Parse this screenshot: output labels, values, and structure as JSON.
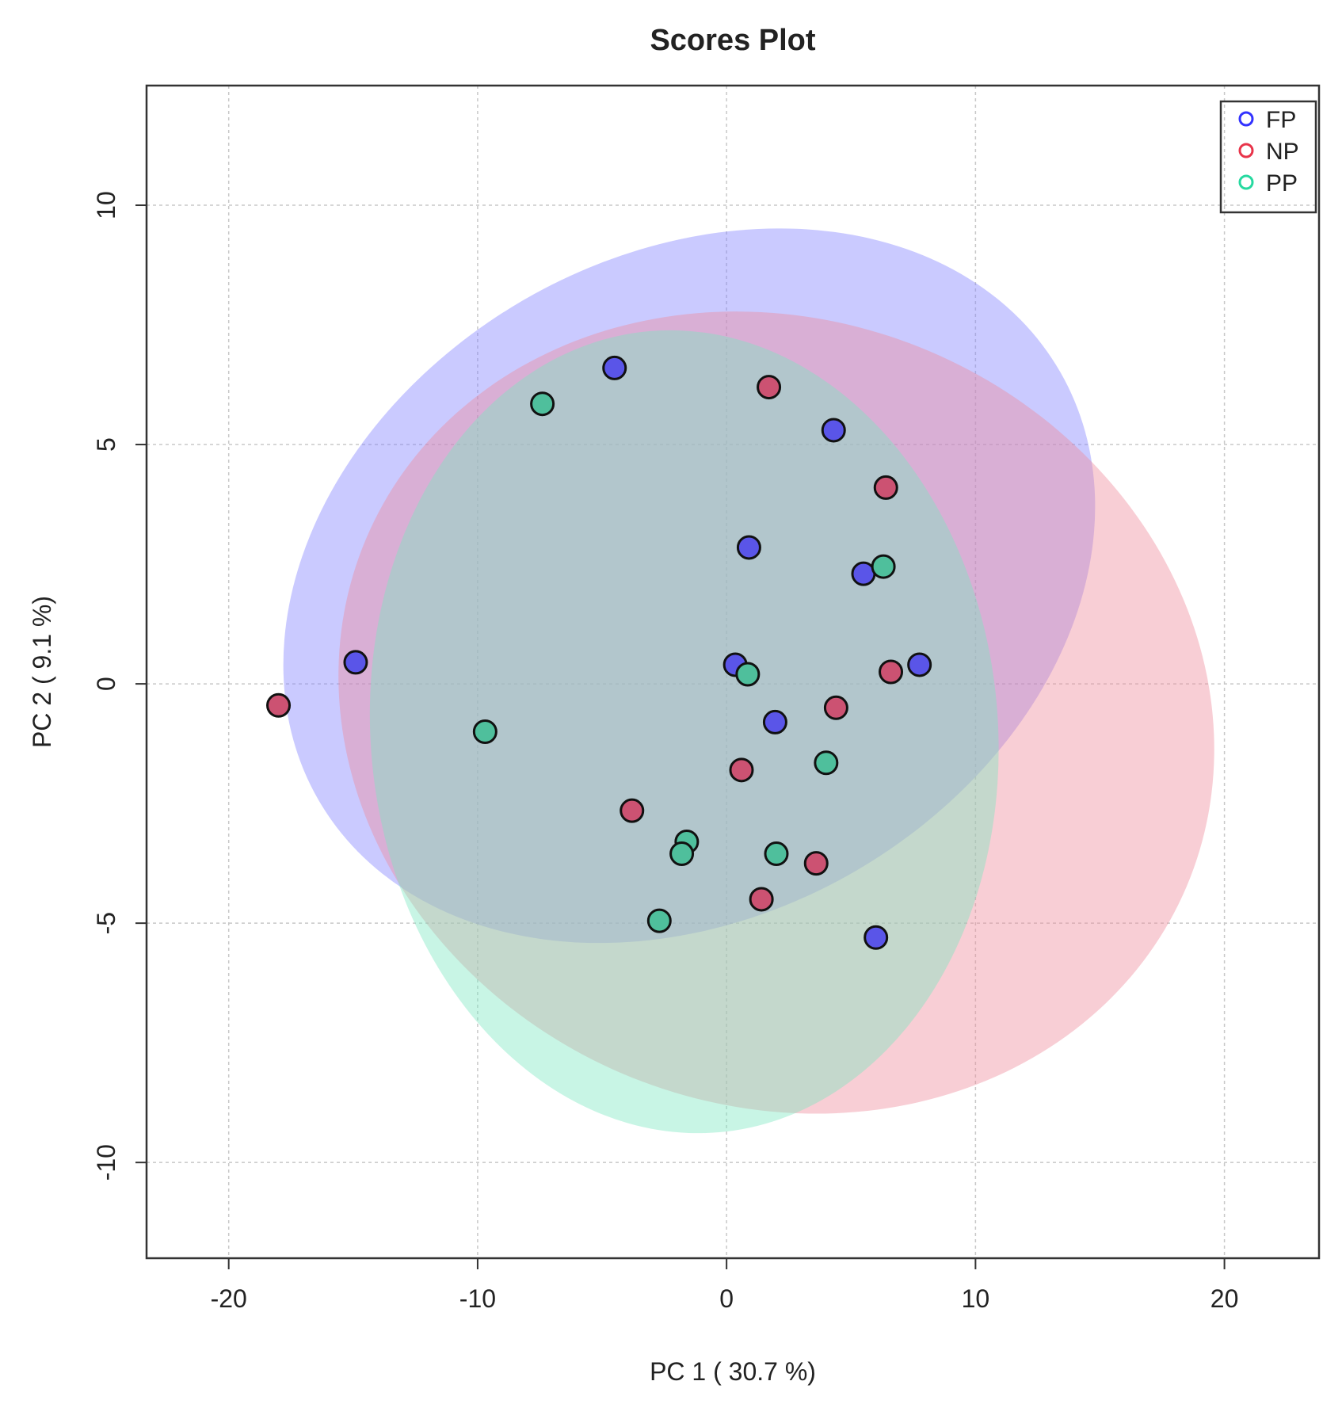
{
  "chart_data": {
    "type": "scatter",
    "title": "Scores Plot",
    "xlabel": "PC 1 ( 30.7 %)",
    "ylabel": "PC 2 ( 9.1 %)",
    "xlim": [
      -23.3,
      23.8
    ],
    "ylim": [
      -12.0,
      12.5
    ],
    "xticks": [
      -20,
      -10,
      0,
      10,
      20
    ],
    "xtick_labels": [
      "-20",
      "-10",
      "0",
      "10",
      "20"
    ],
    "yticks": [
      -10,
      -5,
      0,
      5,
      10
    ],
    "ytick_labels": [
      "-10",
      "-5",
      "0",
      "5",
      "10"
    ],
    "grid": true,
    "legend_position": "top-right",
    "series": [
      {
        "name": "FP",
        "color": "#3333ff",
        "point_fill": "#5a55e8",
        "ellipse_color": "#8080ff",
        "ellipse": {
          "cx": -1.5,
          "cy": 2.05,
          "rx": 17.2,
          "ry": 6.9,
          "angle": -30
        },
        "points": [
          [
            -4.5,
            6.6
          ],
          [
            4.3,
            5.3
          ],
          [
            0.9,
            2.85
          ],
          [
            5.5,
            2.3
          ],
          [
            -14.9,
            0.45
          ],
          [
            0.35,
            0.4
          ],
          [
            7.75,
            0.4
          ],
          [
            1.95,
            -0.8
          ],
          [
            6.0,
            -5.3
          ]
        ]
      },
      {
        "name": "NP",
        "color": "#e8344a",
        "point_fill": "#cc5272",
        "ellipse_color": "#ee8a9a",
        "ellipse": {
          "cx": 2.0,
          "cy": -0.6,
          "rx": 17.9,
          "ry": 8.2,
          "angle": 23
        },
        "points": [
          [
            1.7,
            6.2
          ],
          [
            6.4,
            4.1
          ],
          [
            -18.0,
            -0.45
          ],
          [
            6.6,
            0.25
          ],
          [
            4.4,
            -0.5
          ],
          [
            0.6,
            -1.8
          ],
          [
            -3.8,
            -2.65
          ],
          [
            3.6,
            -3.75
          ],
          [
            1.4,
            -4.5
          ]
        ]
      },
      {
        "name": "PP",
        "color": "#26d9a0",
        "point_fill": "#4fbf9c",
        "ellipse_color": "#7de8c0",
        "ellipse": {
          "cx": -1.7,
          "cy": -1.0,
          "rx": 12.6,
          "ry": 8.4,
          "angle": -5
        },
        "points": [
          [
            -7.4,
            5.85
          ],
          [
            6.3,
            2.45
          ],
          [
            0.85,
            0.2
          ],
          [
            -9.7,
            -1.0
          ],
          [
            4.0,
            -1.65
          ],
          [
            -1.6,
            -3.3
          ],
          [
            -1.8,
            -3.55
          ],
          [
            2.0,
            -3.55
          ],
          [
            -2.7,
            -4.95
          ]
        ]
      }
    ]
  }
}
